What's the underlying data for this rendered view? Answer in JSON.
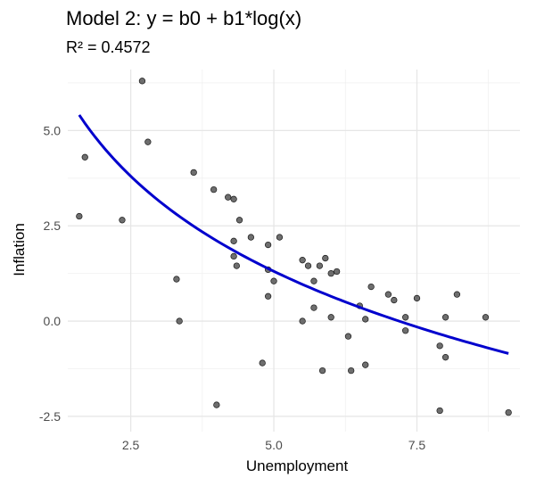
{
  "chart_data": {
    "type": "scatter",
    "title": "Model 2: y = b0 + b1*log(x)",
    "subtitle": "R² = 0.4572",
    "xlabel": "Unemployment",
    "ylabel": "Inflation",
    "xlim": [
      1.4,
      9.3
    ],
    "ylim": [
      -2.9,
      6.6
    ],
    "x_ticks": [
      2.5,
      5.0,
      7.5
    ],
    "x_tick_labels": [
      "2.5",
      "5.0",
      "7.5"
    ],
    "y_ticks": [
      -2.5,
      0.0,
      2.5,
      5.0
    ],
    "y_tick_labels": [
      "-2.5",
      "0.0",
      "2.5",
      "5.0"
    ],
    "grid": true,
    "point_color": "#555555",
    "fit_color": "#0000cd",
    "points": [
      [
        1.6,
        2.75
      ],
      [
        1.7,
        4.3
      ],
      [
        2.35,
        2.65
      ],
      [
        2.7,
        6.3
      ],
      [
        2.8,
        4.7
      ],
      [
        3.3,
        1.1
      ],
      [
        3.35,
        0.0
      ],
      [
        3.6,
        3.9
      ],
      [
        3.95,
        3.45
      ],
      [
        4.0,
        -2.2
      ],
      [
        4.2,
        3.25
      ],
      [
        4.3,
        3.2
      ],
      [
        4.3,
        2.1
      ],
      [
        4.3,
        1.7
      ],
      [
        4.35,
        1.45
      ],
      [
        4.4,
        2.65
      ],
      [
        4.6,
        2.2
      ],
      [
        4.8,
        -1.1
      ],
      [
        4.9,
        2.0
      ],
      [
        4.9,
        1.35
      ],
      [
        4.9,
        0.65
      ],
      [
        5.0,
        1.05
      ],
      [
        5.1,
        2.2
      ],
      [
        5.5,
        1.6
      ],
      [
        5.5,
        0.0
      ],
      [
        5.6,
        1.45
      ],
      [
        5.7,
        1.05
      ],
      [
        5.7,
        0.35
      ],
      [
        5.8,
        1.45
      ],
      [
        5.85,
        -1.3
      ],
      [
        5.9,
        1.65
      ],
      [
        6.0,
        1.25
      ],
      [
        6.0,
        0.1
      ],
      [
        6.1,
        1.3
      ],
      [
        6.3,
        -0.4
      ],
      [
        6.35,
        -1.3
      ],
      [
        6.5,
        0.4
      ],
      [
        6.6,
        0.05
      ],
      [
        6.6,
        -1.15
      ],
      [
        6.7,
        0.9
      ],
      [
        7.0,
        0.7
      ],
      [
        7.1,
        0.55
      ],
      [
        7.3,
        0.1
      ],
      [
        7.3,
        -0.25
      ],
      [
        7.5,
        0.6
      ],
      [
        7.9,
        -2.35
      ],
      [
        7.9,
        -0.65
      ],
      [
        8.0,
        0.1
      ],
      [
        8.0,
        -0.95
      ],
      [
        8.2,
        0.7
      ],
      [
        8.7,
        0.1
      ],
      [
        9.1,
        -2.4
      ]
    ],
    "fit": {
      "b0": 7.1,
      "b1": -3.6,
      "x_range": [
        1.6,
        9.1
      ]
    }
  }
}
